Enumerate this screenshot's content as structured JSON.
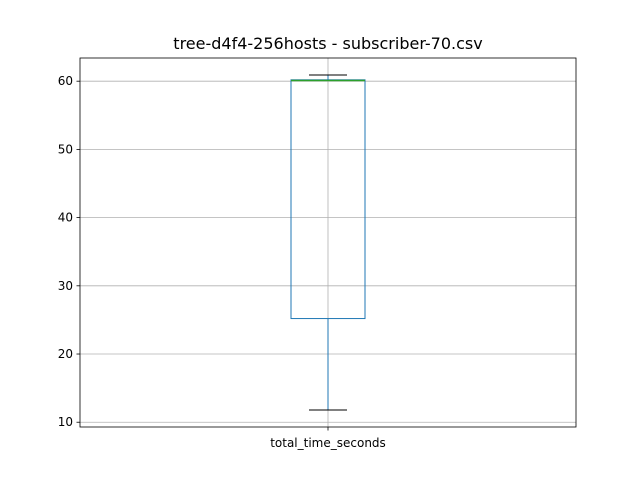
{
  "chart_data": {
    "type": "box",
    "title": "tree-d4f4-256hosts - subscriber-70.csv",
    "categories": [
      "total_time_seconds"
    ],
    "boxes": [
      {
        "category": "total_time_seconds",
        "whisker_low": 11.8,
        "q1": 25.2,
        "median": 60.1,
        "q3": 60.2,
        "whisker_high": 60.9
      }
    ],
    "yticks": [
      10,
      20,
      30,
      40,
      50,
      60
    ],
    "ylim": [
      9.3,
      63.4
    ],
    "grid": true,
    "colors": {
      "box": "#1f77b4",
      "median": "#2ca02c",
      "whisker_cap": "#000000",
      "grid": "#b0b0b0"
    }
  }
}
